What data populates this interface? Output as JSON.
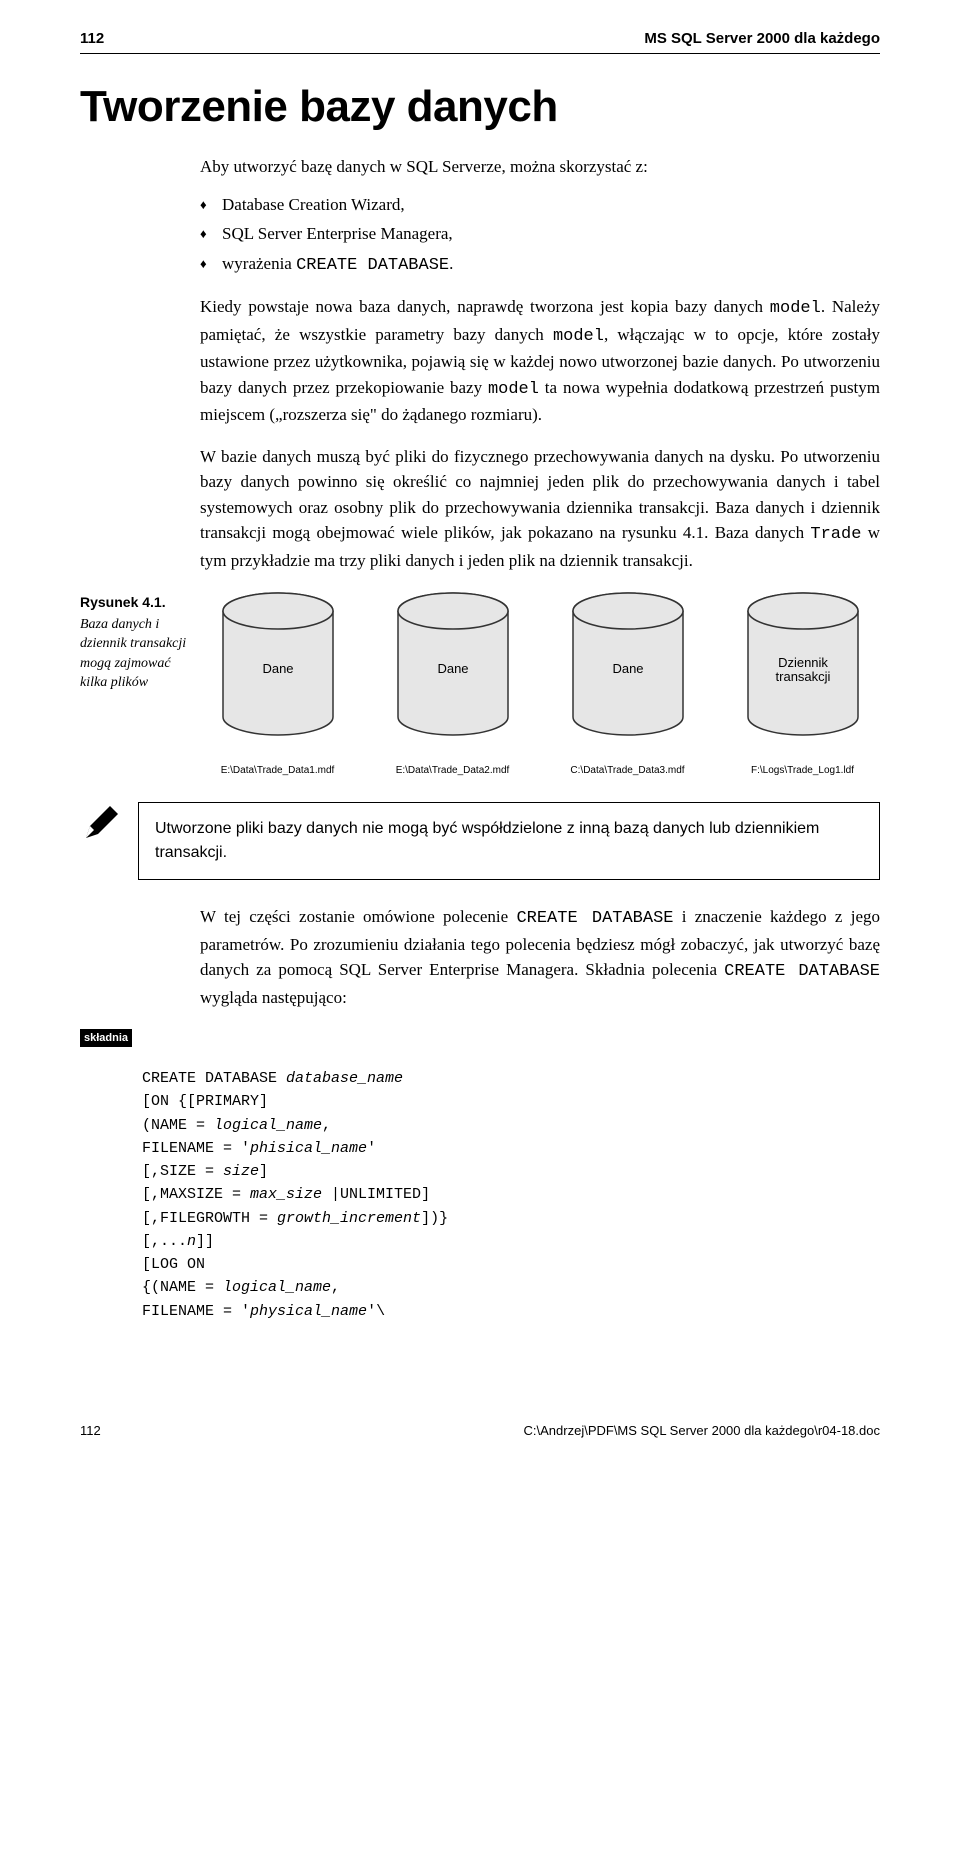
{
  "header": {
    "page_number": "112",
    "running_title": "MS SQL Server 2000 dla każdego"
  },
  "title": "Tworzenie bazy danych",
  "intro": "Aby utworzyć bazę danych w SQL Serverze, można skorzystać z:",
  "bullets": {
    "b1": "Database Creation Wizard,",
    "b2": "SQL Server Enterprise Managera,",
    "b3_prefix": "wyrażenia ",
    "b3_code": "CREATE DATABASE",
    "b3_suffix": "."
  },
  "para1": {
    "t1": "Kiedy powstaje nowa baza danych, naprawdę tworzona jest kopia bazy danych ",
    "c1": "model",
    "t2": ". Należy pamiętać, że wszystkie parametry bazy danych ",
    "c2": "model",
    "t3": ", włączając w to opcje, które zostały ustawione przez użytkownika, pojawią się w każdej nowo utworzonej bazie danych. Po utworzeniu bazy danych przez przekopiowanie bazy ",
    "c3": "model",
    "t4": " ta nowa wypełnia dodatkową przestrzeń pustym miejscem („rozszerza się\" do żądanego rozmiaru)."
  },
  "para2": {
    "t1": "W bazie danych muszą być pliki do fizycznego przechowywania danych na dysku. Po utworzeniu bazy danych powinno się określić co najmniej jeden plik do przechowywania danych i tabel systemowych oraz osobny plik do przechowywania dziennika transakcji. Baza danych i dziennik transakcji mogą obejmować wiele plików, jak pokazano na rysunku 4.1. Baza danych ",
    "c1": "Trade",
    "t2": " w tym przykładzie ma trzy pliki danych i jeden plik na dziennik transakcji."
  },
  "figure": {
    "number": "Rysunek 4.1.",
    "desc": "Baza danych i dziennik transakcji mogą zajmować kilka plików",
    "cylinders": [
      {
        "label": "Dane",
        "file": "E:\\Data\\Trade_Data1.mdf"
      },
      {
        "label": "Dane",
        "file": "E:\\Data\\Trade_Data2.mdf"
      },
      {
        "label": "Dane",
        "file": "C:\\Data\\Trade_Data3.mdf"
      },
      {
        "label": "Dziennik\ntransakcji",
        "file": "F:\\Logs\\Trade_Log1.ldf"
      }
    ],
    "colors": {
      "fill": "#e6e6e6",
      "stroke": "#333333"
    }
  },
  "note": "Utworzone pliki bazy danych nie mogą być współdzielone z inną bazą danych lub dziennikiem transakcji.",
  "para3": {
    "t1": "W tej części zostanie omówione polecenie ",
    "c1": "CREATE DATABASE",
    "t2": " i znaczenie każdego z jego parametrów. Po zrozumieniu działania tego polecenia będziesz mógł zobaczyć, jak utworzyć bazę danych za pomocą SQL Server Enterprise Managera. Składnia polecenia ",
    "c2": "CREATE DATABASE",
    "t3": " wygląda następująco:"
  },
  "skladnia_label": "składnia",
  "syntax": {
    "l1a": "CREATE DATABASE ",
    "l1b": "database_name",
    "l2": "[ON {[PRIMARY]",
    "l3a": "(NAME = ",
    "l3b": "logical_name",
    "l3c": ",",
    "l4a": "FILENAME = '",
    "l4b": "phisical_name",
    "l4c": "'",
    "l5a": "[,SIZE = ",
    "l5b": "size",
    "l5c": "]",
    "l6a": "[,MAXSIZE = ",
    "l6b": "max_size",
    "l6c": " |UNLIMITED]",
    "l7a": "[,FILEGROWTH = ",
    "l7b": "growth_increment",
    "l7c": "])}",
    "l8a": "[,...",
    "l8b": "n",
    "l8c": "]]",
    "l9": "[LOG ON",
    "l10a": "{(NAME = ",
    "l10b": "logical_name",
    "l10c": ",",
    "l11a": "FILENAME = '",
    "l11b": "physical_name",
    "l11c": "'\\"
  },
  "footer": {
    "page": "112",
    "path": "C:\\Andrzej\\PDF\\MS SQL Server 2000 dla każdego\\r04-18.doc"
  }
}
